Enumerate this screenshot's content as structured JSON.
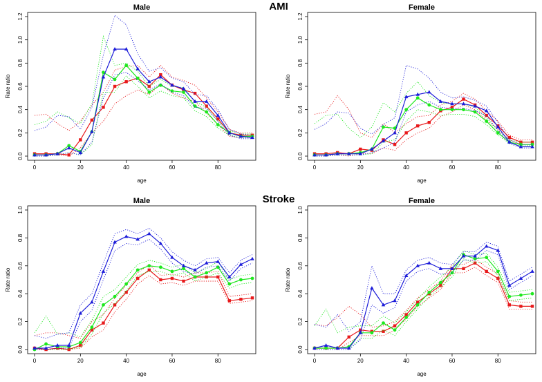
{
  "figure": {
    "section_titles": [
      "AMI",
      "Stroke"
    ]
  },
  "chart_data": [
    {
      "type": "line",
      "section": "AMI",
      "title": "Male",
      "xlabel": "age",
      "ylabel": "Rate ratio",
      "xlim": [
        0,
        95
      ],
      "ylim": [
        0,
        1.2
      ],
      "xticks": [
        0,
        20,
        40,
        60,
        80
      ],
      "yticks": [
        0,
        0.2,
        0.4,
        0.6,
        0.8,
        1.0,
        1.2
      ],
      "ytick_labels": [
        "0.0",
        "0.2",
        "0.4",
        "0.6",
        "0.8",
        "1.0",
        "1.2"
      ],
      "x": [
        0,
        5,
        10,
        15,
        20,
        25,
        30,
        35,
        40,
        45,
        50,
        55,
        60,
        65,
        70,
        75,
        80,
        85,
        90,
        95
      ],
      "series": [
        {
          "name": "red",
          "color": "#e8191b",
          "marker": "square",
          "values": [
            0.02,
            0.02,
            0.02,
            0.01,
            0.14,
            0.31,
            0.42,
            0.6,
            0.64,
            0.67,
            0.6,
            0.7,
            0.61,
            0.57,
            0.54,
            0.43,
            0.32,
            0.2,
            0.18,
            0.18
          ],
          "lower": [
            0.01,
            0.01,
            0.01,
            0.0,
            0.07,
            0.2,
            0.3,
            0.45,
            0.52,
            0.57,
            0.53,
            0.62,
            0.54,
            0.5,
            0.47,
            0.37,
            0.27,
            0.17,
            0.16,
            0.16
          ],
          "upper": [
            0.35,
            0.36,
            0.28,
            0.22,
            0.3,
            0.44,
            0.55,
            0.74,
            0.77,
            0.78,
            0.68,
            0.78,
            0.68,
            0.65,
            0.61,
            0.5,
            0.38,
            0.23,
            0.2,
            0.2
          ]
        },
        {
          "name": "green",
          "color": "#1ee81e",
          "marker": "circle",
          "values": [
            0.01,
            0.01,
            0.02,
            0.09,
            0.04,
            0.21,
            0.72,
            0.66,
            0.78,
            0.67,
            0.55,
            0.61,
            0.56,
            0.55,
            0.43,
            0.38,
            0.27,
            0.2,
            0.17,
            0.17
          ],
          "lower": [
            0.0,
            0.0,
            0.01,
            0.03,
            0.01,
            0.1,
            0.55,
            0.55,
            0.69,
            0.6,
            0.5,
            0.56,
            0.52,
            0.5,
            0.39,
            0.34,
            0.24,
            0.18,
            0.16,
            0.16
          ],
          "upper": [
            0.27,
            0.3,
            0.38,
            0.33,
            0.28,
            0.45,
            1.03,
            0.78,
            0.8,
            0.73,
            0.6,
            0.66,
            0.6,
            0.59,
            0.47,
            0.42,
            0.3,
            0.22,
            0.19,
            0.19
          ]
        },
        {
          "name": "blue",
          "color": "#1c1cd9",
          "marker": "triangle",
          "values": [
            0.01,
            0.01,
            0.02,
            0.07,
            0.03,
            0.21,
            0.68,
            0.92,
            0.92,
            0.75,
            0.64,
            0.68,
            0.61,
            0.58,
            0.47,
            0.47,
            0.35,
            0.2,
            0.17,
            0.16
          ],
          "lower": [
            0.0,
            0.0,
            0.01,
            0.03,
            0.01,
            0.12,
            0.5,
            0.7,
            0.72,
            0.65,
            0.57,
            0.62,
            0.55,
            0.52,
            0.42,
            0.41,
            0.3,
            0.18,
            0.15,
            0.15
          ],
          "upper": [
            0.22,
            0.25,
            0.35,
            0.34,
            0.23,
            0.42,
            0.87,
            1.21,
            1.13,
            0.88,
            0.73,
            0.76,
            0.67,
            0.64,
            0.53,
            0.52,
            0.4,
            0.23,
            0.19,
            0.18
          ]
        }
      ]
    },
    {
      "type": "line",
      "section": "AMI",
      "title": "Female",
      "xlabel": "age",
      "ylabel": "Rate ratio",
      "xlim": [
        0,
        95
      ],
      "ylim": [
        0,
        1.2
      ],
      "xticks": [
        0,
        20,
        40,
        60,
        80
      ],
      "yticks": [
        0,
        0.2,
        0.4,
        0.6,
        0.8,
        1.0,
        1.2
      ],
      "ytick_labels": [
        "0.0",
        "0.2",
        "0.4",
        "0.6",
        "0.8",
        "1.0",
        "1.2"
      ],
      "x": [
        0,
        5,
        10,
        15,
        20,
        25,
        30,
        35,
        40,
        45,
        50,
        55,
        60,
        65,
        70,
        75,
        80,
        85,
        90,
        95
      ],
      "series": [
        {
          "name": "red",
          "color": "#e8191b",
          "marker": "square",
          "values": [
            0.02,
            0.02,
            0.03,
            0.02,
            0.06,
            0.05,
            0.14,
            0.1,
            0.2,
            0.26,
            0.29,
            0.39,
            0.42,
            0.49,
            0.44,
            0.35,
            0.26,
            0.16,
            0.12,
            0.12
          ],
          "lower": [
            0.01,
            0.01,
            0.01,
            0.0,
            0.02,
            0.02,
            0.07,
            0.05,
            0.14,
            0.2,
            0.24,
            0.34,
            0.38,
            0.44,
            0.4,
            0.31,
            0.23,
            0.14,
            0.1,
            0.1
          ],
          "upper": [
            0.36,
            0.38,
            0.52,
            0.4,
            0.2,
            0.16,
            0.28,
            0.2,
            0.28,
            0.34,
            0.35,
            0.44,
            0.47,
            0.54,
            0.49,
            0.39,
            0.3,
            0.18,
            0.14,
            0.14
          ]
        },
        {
          "name": "green",
          "color": "#1ee81e",
          "marker": "circle",
          "values": [
            0.01,
            0.01,
            0.02,
            0.02,
            0.03,
            0.06,
            0.25,
            0.24,
            0.4,
            0.5,
            0.44,
            0.4,
            0.4,
            0.4,
            0.38,
            0.3,
            0.2,
            0.12,
            0.1,
            0.1
          ],
          "lower": [
            0.0,
            0.0,
            0.01,
            0.01,
            0.01,
            0.02,
            0.12,
            0.14,
            0.3,
            0.4,
            0.38,
            0.35,
            0.36,
            0.36,
            0.34,
            0.27,
            0.18,
            0.11,
            0.09,
            0.09
          ],
          "upper": [
            0.28,
            0.35,
            0.36,
            0.24,
            0.16,
            0.25,
            0.46,
            0.38,
            0.54,
            0.64,
            0.52,
            0.46,
            0.45,
            0.45,
            0.42,
            0.33,
            0.22,
            0.14,
            0.12,
            0.12
          ]
        },
        {
          "name": "blue",
          "color": "#1c1cd9",
          "marker": "triangle",
          "values": [
            0.01,
            0.01,
            0.02,
            0.02,
            0.02,
            0.06,
            0.13,
            0.2,
            0.51,
            0.53,
            0.55,
            0.47,
            0.45,
            0.45,
            0.43,
            0.39,
            0.25,
            0.12,
            0.08,
            0.08
          ],
          "lower": [
            0.0,
            0.0,
            0.01,
            0.01,
            0.01,
            0.03,
            0.07,
            0.12,
            0.38,
            0.44,
            0.47,
            0.42,
            0.41,
            0.41,
            0.39,
            0.35,
            0.22,
            0.11,
            0.07,
            0.07
          ],
          "upper": [
            0.23,
            0.28,
            0.38,
            0.37,
            0.24,
            0.19,
            0.27,
            0.33,
            0.78,
            0.75,
            0.67,
            0.55,
            0.5,
            0.51,
            0.48,
            0.43,
            0.29,
            0.14,
            0.1,
            0.1
          ]
        }
      ]
    },
    {
      "type": "line",
      "section": "Stroke",
      "title": "Male",
      "xlabel": "age",
      "ylabel": "Rate ratio",
      "xlim": [
        0,
        95
      ],
      "ylim": [
        0,
        1.0
      ],
      "xticks": [
        0,
        20,
        40,
        60,
        80
      ],
      "yticks": [
        0,
        0.2,
        0.4,
        0.6,
        0.8,
        1.0
      ],
      "ytick_labels": [
        "0.0",
        "0.2",
        "0.4",
        "0.6",
        "0.8",
        "1.0"
      ],
      "x": [
        0,
        5,
        10,
        15,
        20,
        25,
        30,
        35,
        40,
        45,
        50,
        55,
        60,
        65,
        70,
        75,
        80,
        85,
        90,
        95
      ],
      "series": [
        {
          "name": "red",
          "color": "#e8191b",
          "marker": "square",
          "values": [
            0.01,
            0.0,
            0.01,
            0.0,
            0.03,
            0.14,
            0.19,
            0.32,
            0.41,
            0.51,
            0.57,
            0.5,
            0.51,
            0.49,
            0.52,
            0.52,
            0.52,
            0.35,
            0.36,
            0.37
          ],
          "lower": [
            0.0,
            0.0,
            0.0,
            0.0,
            0.01,
            0.09,
            0.14,
            0.27,
            0.36,
            0.47,
            0.53,
            0.47,
            0.48,
            0.46,
            0.49,
            0.49,
            0.49,
            0.33,
            0.34,
            0.35
          ],
          "upper": [
            0.1,
            0.12,
            0.12,
            0.1,
            0.08,
            0.2,
            0.25,
            0.37,
            0.46,
            0.55,
            0.61,
            0.53,
            0.54,
            0.52,
            0.55,
            0.55,
            0.56,
            0.38,
            0.39,
            0.4
          ]
        },
        {
          "name": "green",
          "color": "#1ee81e",
          "marker": "circle",
          "values": [
            0.0,
            0.04,
            0.02,
            0.02,
            0.05,
            0.16,
            0.32,
            0.38,
            0.47,
            0.57,
            0.6,
            0.59,
            0.56,
            0.58,
            0.52,
            0.55,
            0.59,
            0.47,
            0.5,
            0.51
          ],
          "lower": [
            0.0,
            0.0,
            0.0,
            0.0,
            0.02,
            0.11,
            0.26,
            0.33,
            0.42,
            0.53,
            0.56,
            0.56,
            0.53,
            0.55,
            0.49,
            0.52,
            0.55,
            0.44,
            0.47,
            0.48
          ],
          "upper": [
            0.12,
            0.24,
            0.11,
            0.12,
            0.09,
            0.21,
            0.38,
            0.43,
            0.52,
            0.61,
            0.64,
            0.62,
            0.59,
            0.61,
            0.55,
            0.58,
            0.63,
            0.5,
            0.53,
            0.54
          ]
        },
        {
          "name": "blue",
          "color": "#1c1cd9",
          "marker": "triangle",
          "values": [
            0.01,
            0.01,
            0.03,
            0.03,
            0.26,
            0.34,
            0.56,
            0.77,
            0.81,
            0.79,
            0.83,
            0.76,
            0.66,
            0.6,
            0.57,
            0.62,
            0.63,
            0.52,
            0.61,
            0.65
          ],
          "lower": [
            0.0,
            0.0,
            0.01,
            0.01,
            0.2,
            0.28,
            0.5,
            0.71,
            0.76,
            0.75,
            0.79,
            0.72,
            0.62,
            0.56,
            0.54,
            0.59,
            0.6,
            0.49,
            0.58,
            0.62
          ],
          "upper": [
            0.1,
            0.08,
            0.11,
            0.12,
            0.32,
            0.4,
            0.62,
            0.83,
            0.86,
            0.83,
            0.87,
            0.8,
            0.7,
            0.64,
            0.6,
            0.65,
            0.66,
            0.55,
            0.64,
            0.68
          ]
        }
      ]
    },
    {
      "type": "line",
      "section": "Stroke",
      "title": "Female",
      "xlabel": "age",
      "ylabel": "Rate ratio",
      "xlim": [
        0,
        95
      ],
      "ylim": [
        0,
        1.0
      ],
      "xticks": [
        0,
        20,
        40,
        60,
        80
      ],
      "yticks": [
        0,
        0.2,
        0.4,
        0.6,
        0.8,
        1.0
      ],
      "ytick_labels": [
        "0.0",
        "0.2",
        "0.4",
        "0.6",
        "0.8",
        "1.0"
      ],
      "x": [
        0,
        5,
        10,
        15,
        20,
        25,
        30,
        35,
        40,
        45,
        50,
        55,
        60,
        65,
        70,
        75,
        80,
        85,
        90,
        95
      ],
      "series": [
        {
          "name": "red",
          "color": "#e8191b",
          "marker": "square",
          "values": [
            0.01,
            0.01,
            0.01,
            0.09,
            0.14,
            0.13,
            0.13,
            0.17,
            0.25,
            0.34,
            0.4,
            0.46,
            0.58,
            0.58,
            0.62,
            0.56,
            0.51,
            0.32,
            0.31,
            0.31
          ],
          "lower": [
            0.0,
            0.0,
            0.0,
            0.05,
            0.1,
            0.1,
            0.1,
            0.14,
            0.22,
            0.31,
            0.37,
            0.43,
            0.55,
            0.55,
            0.59,
            0.53,
            0.48,
            0.29,
            0.29,
            0.29
          ],
          "upper": [
            0.18,
            0.17,
            0.23,
            0.31,
            0.25,
            0.16,
            0.17,
            0.2,
            0.28,
            0.37,
            0.43,
            0.49,
            0.61,
            0.61,
            0.65,
            0.59,
            0.54,
            0.35,
            0.34,
            0.34
          ]
        },
        {
          "name": "green",
          "color": "#1ee81e",
          "marker": "circle",
          "values": [
            0.01,
            0.01,
            0.01,
            0.02,
            0.12,
            0.12,
            0.19,
            0.14,
            0.23,
            0.32,
            0.41,
            0.48,
            0.55,
            0.68,
            0.65,
            0.66,
            0.56,
            0.38,
            0.39,
            0.4
          ],
          "lower": [
            0.0,
            0.0,
            0.0,
            0.0,
            0.08,
            0.08,
            0.14,
            0.1,
            0.2,
            0.29,
            0.38,
            0.45,
            0.52,
            0.65,
            0.62,
            0.63,
            0.53,
            0.35,
            0.36,
            0.37
          ],
          "upper": [
            0.17,
            0.29,
            0.12,
            0.16,
            0.17,
            0.17,
            0.24,
            0.19,
            0.27,
            0.36,
            0.45,
            0.52,
            0.59,
            0.71,
            0.68,
            0.69,
            0.59,
            0.41,
            0.42,
            0.43
          ]
        },
        {
          "name": "blue",
          "color": "#1c1cd9",
          "marker": "triangle",
          "values": [
            0.01,
            0.03,
            0.01,
            0.01,
            0.12,
            0.44,
            0.32,
            0.35,
            0.53,
            0.6,
            0.62,
            0.58,
            0.58,
            0.67,
            0.67,
            0.74,
            0.71,
            0.46,
            0.51,
            0.56
          ],
          "lower": [
            0.0,
            0.0,
            0.0,
            0.0,
            0.07,
            0.32,
            0.26,
            0.3,
            0.49,
            0.56,
            0.58,
            0.54,
            0.55,
            0.64,
            0.64,
            0.71,
            0.68,
            0.43,
            0.48,
            0.53
          ],
          "upper": [
            0.18,
            0.16,
            0.25,
            0.13,
            0.2,
            0.6,
            0.4,
            0.4,
            0.57,
            0.64,
            0.66,
            0.62,
            0.61,
            0.7,
            0.7,
            0.77,
            0.74,
            0.49,
            0.54,
            0.59
          ]
        }
      ]
    }
  ]
}
